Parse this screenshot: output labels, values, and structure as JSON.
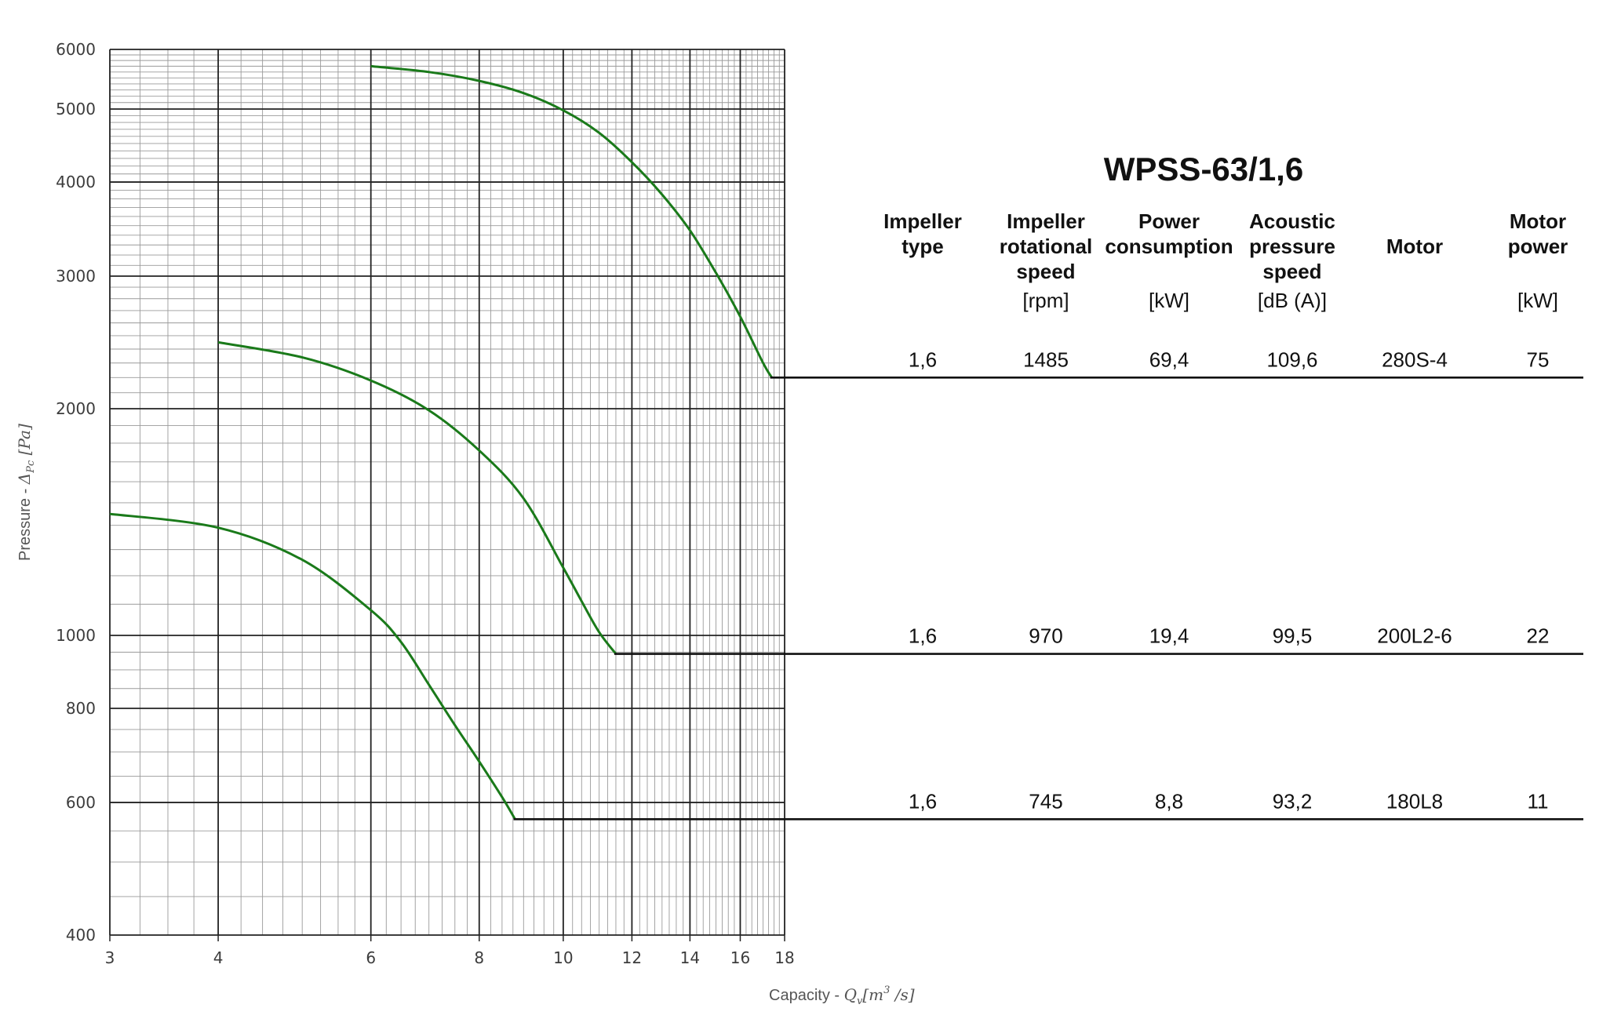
{
  "chart_data": {
    "type": "line",
    "title": "WPSS-63/1,6",
    "xlabel": "Capacity",
    "xlabel_symbol": "Q",
    "xlabel_sub": "v",
    "xlabel_unit": "[m",
    "xlabel_unit_sup": "3",
    "xlabel_unit_end": " /s]",
    "ylabel": "Pressure",
    "ylabel_symbol": "Δ",
    "ylabel_sub": "Pc",
    "ylabel_unit": "[Pa]",
    "x_scale": "log",
    "y_scale": "log",
    "xlim": [
      3,
      18
    ],
    "ylim": [
      400,
      6000
    ],
    "grid": true,
    "x_ticks": [
      3,
      4,
      6,
      8,
      10,
      12,
      14,
      16,
      18
    ],
    "y_ticks": [
      400,
      600,
      800,
      1000,
      2000,
      3000,
      4000,
      5000,
      6000
    ],
    "curve_color": "#1a7a1a",
    "series": [
      {
        "rpm": 1485,
        "x": [
          6,
          7,
          8,
          9,
          10,
          11,
          12,
          13,
          14,
          15,
          16,
          17,
          17.4
        ],
        "y": [
          5700,
          5600,
          5450,
          5250,
          4980,
          4650,
          4250,
          3850,
          3450,
          3030,
          2650,
          2300,
          2200
        ]
      },
      {
        "rpm": 970,
        "x": [
          4,
          5,
          6,
          7,
          8,
          9,
          10,
          10.5,
          11,
          11.5
        ],
        "y": [
          2450,
          2340,
          2180,
          1990,
          1760,
          1520,
          1230,
          1110,
          1010,
          945
        ]
      },
      {
        "rpm": 745,
        "x": [
          3,
          4,
          5,
          6,
          6.5,
          7,
          7.5,
          8,
          8.5,
          8.8
        ],
        "y": [
          1450,
          1390,
          1260,
          1080,
          980,
          860,
          760,
          680,
          610,
          570
        ]
      }
    ]
  },
  "table": {
    "headers": [
      [
        "Impeller",
        "type"
      ],
      [
        "Impeller",
        "rotational",
        "speed"
      ],
      [
        "Power",
        "consumption"
      ],
      [
        "Acoustic",
        "pressure",
        "speed"
      ],
      [
        "Motor"
      ],
      [
        "Motor",
        "power"
      ]
    ],
    "units": [
      "",
      "[rpm]",
      "[kW]",
      "[dB (A)]",
      "",
      "[kW]"
    ],
    "rows": [
      {
        "impeller_type": "1,6",
        "speed": "1485",
        "power_consumption": "69,4",
        "acoustic": "109,6",
        "motor": "280S-4",
        "motor_power": "75"
      },
      {
        "impeller_type": "1,6",
        "speed": "970",
        "power_consumption": "19,4",
        "acoustic": "99,5",
        "motor": "200L2-6",
        "motor_power": "22"
      },
      {
        "impeller_type": "1,6",
        "speed": "745",
        "power_consumption": "8,8",
        "acoustic": "93,2",
        "motor": "180L8",
        "motor_power": "11"
      }
    ]
  }
}
